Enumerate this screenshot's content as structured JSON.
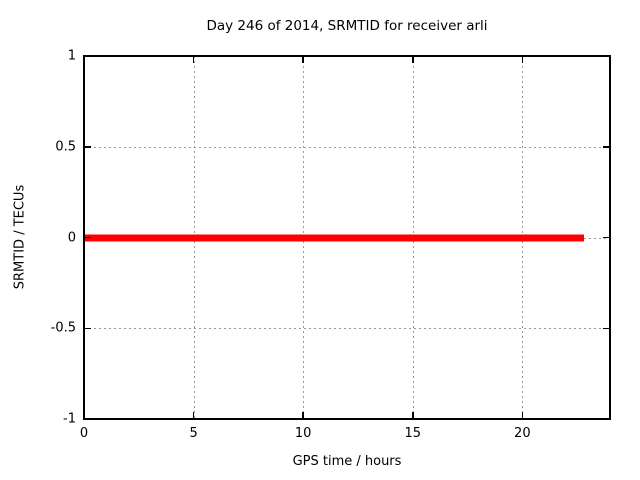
{
  "chart_data": {
    "type": "line",
    "title": "Day 246 of 2014, SRMTID for receiver arli",
    "xlabel": "GPS time / hours",
    "ylabel": "SRMTID / TECUs",
    "xlim": [
      0,
      24
    ],
    "ylim": [
      -1,
      1
    ],
    "xticks": [
      0,
      5,
      10,
      15,
      20
    ],
    "yticks": [
      -1,
      -0.5,
      0,
      0.5,
      1
    ],
    "grid": true,
    "legend_position": "none",
    "series": [
      {
        "name": "SRMTID",
        "color": "#ff0000",
        "style": "thick solid horizontal segment",
        "x": [
          0,
          22.8
        ],
        "y": [
          0,
          0
        ]
      }
    ]
  },
  "colors": {
    "background": "#ffffff",
    "border": "#000000",
    "grid": "#9a9a9a",
    "text": "#000000",
    "series_red": "#ff0000"
  }
}
